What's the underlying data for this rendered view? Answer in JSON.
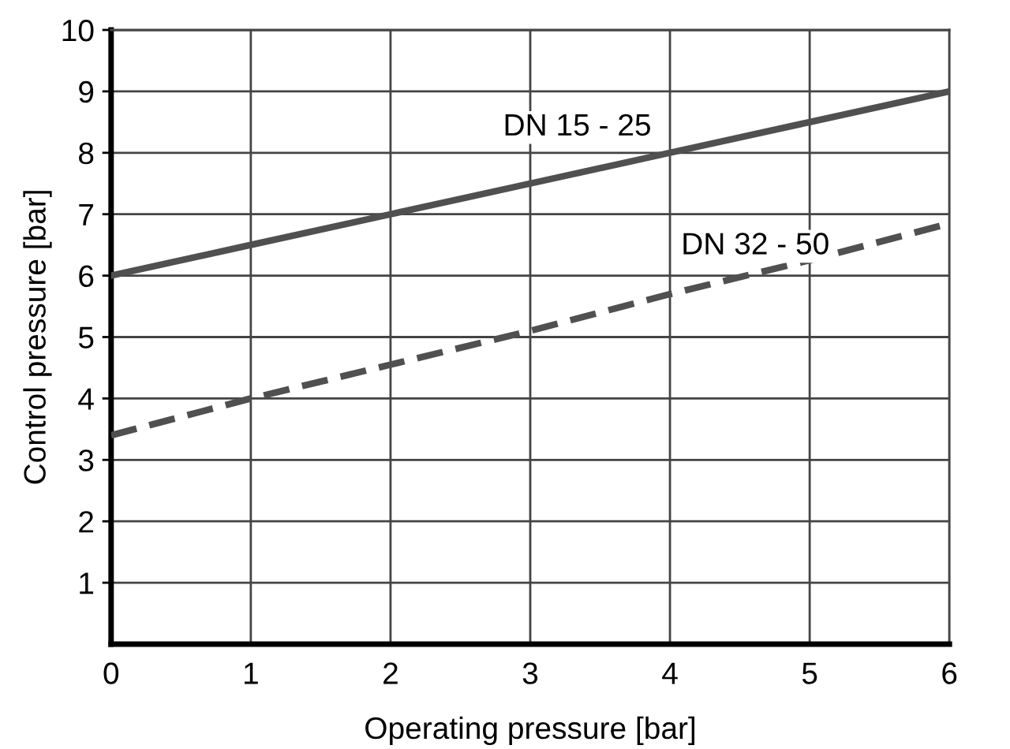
{
  "chart_data": {
    "type": "line",
    "xlabel": "Operating pressure [bar]",
    "ylabel": "Control pressure [bar]",
    "series": [
      {
        "name": "DN 15 - 25",
        "color": "#505050",
        "x": [
          0,
          1,
          2,
          3,
          4,
          5,
          6
        ],
        "values": [
          6,
          6.5,
          7,
          7.5,
          8,
          8.5,
          9
        ],
        "line_style": "solid"
      },
      {
        "name": "DN 32 - 50",
        "color": "#505050",
        "x": [
          0,
          1,
          2,
          3,
          4,
          5,
          6
        ],
        "values": [
          3.4,
          4,
          4.55,
          5.1,
          5.7,
          6.25,
          6.85
        ],
        "line_style": "dashed"
      }
    ],
    "xlim": [
      0,
      6
    ],
    "ylim": [
      0,
      10
    ],
    "xticks": [
      0,
      1,
      2,
      3,
      4,
      5,
      6
    ],
    "yticks": [
      1,
      2,
      3,
      4,
      5,
      6,
      7,
      8,
      9,
      10
    ],
    "grid": true,
    "marker": "none"
  }
}
